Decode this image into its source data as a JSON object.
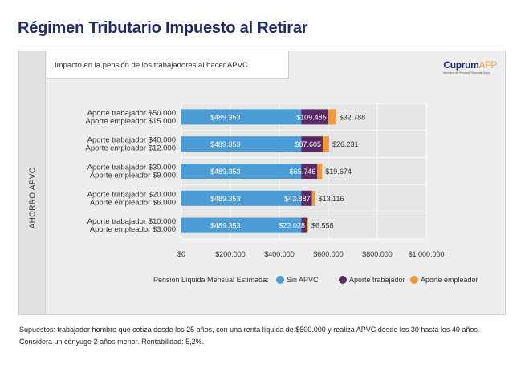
{
  "page": {
    "title": "Régimen Tributario Impuesto al Retirar",
    "subtitle": "Impacto en la pensión de los trabajadores al hacer APVC",
    "side_label": "AHORRO APVC",
    "logo": {
      "main": "Cuprum",
      "accent": "AFP",
      "sub": "Miembro de Principal Financial Group"
    },
    "footnote": "Supuestos: trabajador hombre que cotiza desde los 25 años, con una renta líquida de $500.000 y realiza APVC desde los 30 hasta los 40 años. Considera un cónyuge 2 años menor. Rentabilidad: 5,2%."
  },
  "chart_data": {
    "type": "bar",
    "orientation": "horizontal",
    "stacked": true,
    "categories": [
      [
        "Aporte trabajador $50.000",
        "Aporte empleador $15.000"
      ],
      [
        "Aporte trabajador $40.000",
        "Aporte empleador $12.000"
      ],
      [
        "Aporte trabajador $30.000",
        "Aporte empleador $9.000"
      ],
      [
        "Aporte trabajador $20.000",
        "Aporte empleador $6.000"
      ],
      [
        "Aporte trabajador $10.000",
        "Aporte empleador $3.000"
      ]
    ],
    "series": [
      {
        "name": "Sin APVC",
        "color": "#4b9bd5",
        "values": [
          489353,
          489353,
          489353,
          489353,
          489353
        ],
        "labels": [
          "$489.353",
          "$489.353",
          "$489.353",
          "$489.353",
          "$489.353"
        ]
      },
      {
        "name": "Aporte trabajador",
        "color": "#5a2a66",
        "values": [
          109485,
          87605,
          65746,
          43887,
          22028
        ],
        "labels": [
          "$109.485",
          "$87.605",
          "$65.746",
          "$43.887",
          "$22.028"
        ]
      },
      {
        "name": "Aporte empleador",
        "color": "#f2973a",
        "values": [
          32788,
          26231,
          19674,
          13116,
          6558
        ],
        "labels": [
          "$32.788",
          "$26.231",
          "$19.674",
          "$13.116",
          "$6.558"
        ]
      }
    ],
    "xlim": [
      0,
      1000000
    ],
    "xticks": [
      0,
      200000,
      400000,
      600000,
      800000,
      1000000
    ],
    "xtick_labels": [
      "$0",
      "$200.000",
      "$400.000",
      "$600.000",
      "$800.000",
      "$1.000.000"
    ],
    "legend_title": "Pensión Líquida Mensual Estimada:",
    "legend_position": "bottom",
    "grid": true,
    "grid_color": "#ffffff",
    "title_color": "#1f2a6e"
  }
}
